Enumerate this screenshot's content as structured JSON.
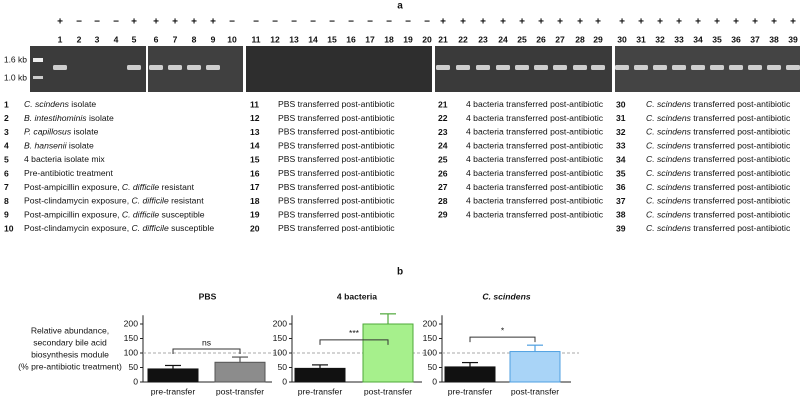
{
  "panel_labels": [
    "a",
    "b"
  ],
  "gel": {
    "marker_labels": [
      "1.6 kb",
      "1.0 kb"
    ],
    "lanes": [
      {
        "number": 1,
        "sign": "+"
      },
      {
        "number": 2,
        "sign": "−"
      },
      {
        "number": 3,
        "sign": "−"
      },
      {
        "number": 4,
        "sign": "−"
      },
      {
        "number": 5,
        "sign": "+"
      },
      {
        "number": 6,
        "sign": "+"
      },
      {
        "number": 7,
        "sign": "+"
      },
      {
        "number": 8,
        "sign": "+"
      },
      {
        "number": 9,
        "sign": "+"
      },
      {
        "number": 10,
        "sign": "−"
      },
      {
        "number": 11,
        "sign": "−"
      },
      {
        "number": 12,
        "sign": "−"
      },
      {
        "number": 13,
        "sign": "−"
      },
      {
        "number": 14,
        "sign": "−"
      },
      {
        "number": 15,
        "sign": "−"
      },
      {
        "number": 16,
        "sign": "−"
      },
      {
        "number": 17,
        "sign": "−"
      },
      {
        "number": 18,
        "sign": "−"
      },
      {
        "number": 19,
        "sign": "−"
      },
      {
        "number": 20,
        "sign": "−"
      },
      {
        "number": 21,
        "sign": "+"
      },
      {
        "number": 22,
        "sign": "+"
      },
      {
        "number": 23,
        "sign": "+"
      },
      {
        "number": 24,
        "sign": "+"
      },
      {
        "number": 25,
        "sign": "+"
      },
      {
        "number": 26,
        "sign": "+"
      },
      {
        "number": 27,
        "sign": "+"
      },
      {
        "number": 28,
        "sign": "+"
      },
      {
        "number": 29,
        "sign": "+"
      },
      {
        "number": 30,
        "sign": "+"
      },
      {
        "number": 31,
        "sign": "+"
      },
      {
        "number": 32,
        "sign": "+"
      },
      {
        "number": 33,
        "sign": "+"
      },
      {
        "number": 34,
        "sign": "+"
      },
      {
        "number": 35,
        "sign": "+"
      },
      {
        "number": 36,
        "sign": "+"
      },
      {
        "number": 37,
        "sign": "+"
      },
      {
        "number": 38,
        "sign": "+"
      },
      {
        "number": 39,
        "sign": "+"
      }
    ]
  },
  "legend": {
    "items": [
      {
        "number": 1,
        "parts": [
          {
            "text": "C. scindens",
            "italic": true
          },
          {
            "text": " isolate"
          }
        ]
      },
      {
        "number": 2,
        "parts": [
          {
            "text": "B. intestihominis",
            "italic": true
          },
          {
            "text": " isolate"
          }
        ]
      },
      {
        "number": 3,
        "parts": [
          {
            "text": "P. capillosus",
            "italic": true
          },
          {
            "text": " isolate"
          }
        ]
      },
      {
        "number": 4,
        "parts": [
          {
            "text": "B. hansenii",
            "italic": true
          },
          {
            "text": " isolate"
          }
        ]
      },
      {
        "number": 5,
        "parts": [
          {
            "text": "4 bacteria isolate mix"
          }
        ]
      },
      {
        "number": 6,
        "parts": [
          {
            "text": "Pre-antibiotic treatment"
          }
        ]
      },
      {
        "number": 7,
        "parts": [
          {
            "text": "Post-ampicillin exposure, "
          },
          {
            "text": "C. difficile",
            "italic": true
          },
          {
            "text": " resistant"
          }
        ]
      },
      {
        "number": 8,
        "parts": [
          {
            "text": "Post-clindamycin exposure, "
          },
          {
            "text": "C. difficile",
            "italic": true
          },
          {
            "text": " resistant"
          }
        ]
      },
      {
        "number": 9,
        "parts": [
          {
            "text": "Post-ampicillin exposure, "
          },
          {
            "text": "C. difficile",
            "italic": true
          },
          {
            "text": " susceptible"
          }
        ]
      },
      {
        "number": 10,
        "parts": [
          {
            "text": "Post-clindamycin exposure, "
          },
          {
            "text": "C. difficile",
            "italic": true
          },
          {
            "text": " susceptible"
          }
        ]
      },
      {
        "number": 11,
        "parts": [
          {
            "text": "PBS transferred post-antibiotic"
          }
        ]
      },
      {
        "number": 12,
        "parts": [
          {
            "text": "PBS transferred post-antibiotic"
          }
        ]
      },
      {
        "number": 13,
        "parts": [
          {
            "text": "PBS transferred post-antibiotic"
          }
        ]
      },
      {
        "number": 14,
        "parts": [
          {
            "text": "PBS transferred post-antibiotic"
          }
        ]
      },
      {
        "number": 15,
        "parts": [
          {
            "text": "PBS transferred post-antibiotic"
          }
        ]
      },
      {
        "number": 16,
        "parts": [
          {
            "text": "PBS transferred post-antibiotic"
          }
        ]
      },
      {
        "number": 17,
        "parts": [
          {
            "text": "PBS transferred post-antibiotic"
          }
        ]
      },
      {
        "number": 18,
        "parts": [
          {
            "text": "PBS transferred post-antibiotic"
          }
        ]
      },
      {
        "number": 19,
        "parts": [
          {
            "text": "PBS transferred post-antibiotic"
          }
        ]
      },
      {
        "number": 20,
        "parts": [
          {
            "text": "PBS transferred post-antibiotic"
          }
        ]
      },
      {
        "number": 21,
        "parts": [
          {
            "text": "4 bacteria transferred post-antibiotic"
          }
        ]
      },
      {
        "number": 22,
        "parts": [
          {
            "text": "4 bacteria transferred post-antibiotic"
          }
        ]
      },
      {
        "number": 23,
        "parts": [
          {
            "text": "4 bacteria transferred post-antibiotic"
          }
        ]
      },
      {
        "number": 24,
        "parts": [
          {
            "text": "4 bacteria transferred post-antibiotic"
          }
        ]
      },
      {
        "number": 25,
        "parts": [
          {
            "text": "4 bacteria transferred post-antibiotic"
          }
        ]
      },
      {
        "number": 26,
        "parts": [
          {
            "text": "4 bacteria transferred post-antibiotic"
          }
        ]
      },
      {
        "number": 27,
        "parts": [
          {
            "text": "4 bacteria transferred post-antibiotic"
          }
        ]
      },
      {
        "number": 28,
        "parts": [
          {
            "text": "4 bacteria transferred post-antibiotic"
          }
        ]
      },
      {
        "number": 29,
        "parts": [
          {
            "text": "4 bacteria transferred post-antibiotic"
          }
        ]
      },
      {
        "number": 30,
        "parts": [
          {
            "text": "C. scindens",
            "italic": true
          },
          {
            "text": " transferred post-antibiotic"
          }
        ]
      },
      {
        "number": 31,
        "parts": [
          {
            "text": "C. scindens",
            "italic": true
          },
          {
            "text": " transferred post-antibiotic"
          }
        ]
      },
      {
        "number": 32,
        "parts": [
          {
            "text": "C. scindens",
            "italic": true
          },
          {
            "text": " transferred post-antibiotic"
          }
        ]
      },
      {
        "number": 33,
        "parts": [
          {
            "text": "C. scindens",
            "italic": true
          },
          {
            "text": " transferred post-antibiotic"
          }
        ]
      },
      {
        "number": 34,
        "parts": [
          {
            "text": "C. scindens",
            "italic": true
          },
          {
            "text": " transferred post-antibiotic"
          }
        ]
      },
      {
        "number": 35,
        "parts": [
          {
            "text": "C. scindens",
            "italic": true
          },
          {
            "text": " transferred post-antibiotic"
          }
        ]
      },
      {
        "number": 36,
        "parts": [
          {
            "text": "C. scindens",
            "italic": true
          },
          {
            "text": " transferred post-antibiotic"
          }
        ]
      },
      {
        "number": 37,
        "parts": [
          {
            "text": "C. scindens",
            "italic": true
          },
          {
            "text": " transferred post-antibiotic"
          }
        ]
      },
      {
        "number": 38,
        "parts": [
          {
            "text": "C. scindens",
            "italic": true
          },
          {
            "text": " transferred post-antibiotic"
          }
        ]
      },
      {
        "number": 39,
        "parts": [
          {
            "text": "C. scindens",
            "italic": true
          },
          {
            "text": " transferred post-antibiotic"
          }
        ]
      }
    ]
  },
  "chart_data": [
    {
      "type": "bar",
      "title": "PBS",
      "title_italic": false,
      "ylabel": [
        "Relative abundance,",
        "secondary bile acid",
        "biosynthesis module",
        "(% pre-antibiotic treatment)"
      ],
      "categories": [
        "pre-transfer",
        "post-transfer"
      ],
      "values": [
        45,
        68
      ],
      "errors": [
        12,
        18
      ],
      "colors": [
        "#111111",
        "#8c8c8c"
      ],
      "edge_colors": [
        "#111111",
        "#555555"
      ],
      "ylim": [
        0,
        230
      ],
      "yticks": [
        0,
        50,
        100,
        150,
        200
      ],
      "reference_line": 100,
      "significance": "ns"
    },
    {
      "type": "bar",
      "title": "4 bacteria",
      "title_italic": false,
      "categories": [
        "pre-transfer",
        "post-transfer"
      ],
      "values": [
        47,
        200
      ],
      "errors": [
        12,
        35
      ],
      "colors": [
        "#111111",
        "#a6f08c"
      ],
      "edge_colors": [
        "#111111",
        "#4fa83a"
      ],
      "ylim": [
        0,
        230
      ],
      "yticks": [
        0,
        50,
        100,
        150,
        200
      ],
      "reference_line": 100,
      "significance": "***"
    },
    {
      "type": "bar",
      "title": "C. scindens",
      "title_italic": true,
      "categories": [
        "pre-transfer",
        "post-transfer"
      ],
      "values": [
        52,
        105
      ],
      "errors": [
        15,
        22
      ],
      "colors": [
        "#111111",
        "#a9d4f7"
      ],
      "edge_colors": [
        "#111111",
        "#4f9fe0"
      ],
      "ylim": [
        0,
        230
      ],
      "yticks": [
        0,
        50,
        100,
        150,
        200
      ],
      "reference_line": 100,
      "significance": "*"
    }
  ]
}
